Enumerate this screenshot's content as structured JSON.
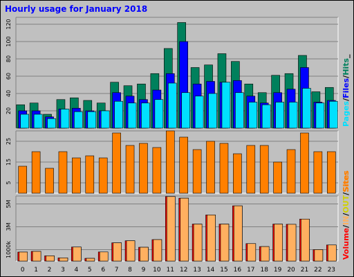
{
  "chart_data": {
    "title": "Hourly usage for January 2018",
    "type": "bar",
    "categories": [
      "0",
      "1",
      "2",
      "3",
      "4",
      "5",
      "6",
      "7",
      "8",
      "9",
      "10",
      "11",
      "12",
      "13",
      "14",
      "15",
      "16",
      "17",
      "18",
      "19",
      "20",
      "21",
      "22",
      "23"
    ],
    "colors": {
      "pages": "#00e0ff",
      "files": "#0000ff",
      "hits": "#00805c",
      "sites": "#ff8000",
      "in": "#ffb060",
      "out": "#d0d000",
      "volume": "#ff0000",
      "title": "#0000ff",
      "background": "#c0c0c0",
      "plot": "#c0c0c0",
      "grid": "#808080"
    },
    "panels": [
      {
        "id": "hits-files-pages",
        "ylim": [
          0,
          128
        ],
        "yticks": [
          "20",
          "40",
          "60",
          "80",
          "100",
          "120"
        ],
        "tick_values": [
          20,
          40,
          60,
          80,
          100,
          120
        ],
        "legend": [
          "Pages",
          "/",
          "Files",
          "/",
          "Hits",
          "_"
        ],
        "series": [
          {
            "name": "Hits",
            "color": "#00805c",
            "values": [
              27,
              29,
              16,
              33,
              35,
              32,
              29,
              53,
              49,
              51,
              63,
              92,
              122,
              70,
              73,
              86,
              77,
              51,
              41,
              61,
              63,
              84,
              42,
              47
            ]
          },
          {
            "name": "Files",
            "color": "#0000ff",
            "values": [
              20,
              20,
              13,
              22,
              23,
              20,
              20,
              41,
              37,
              33,
              44,
              63,
              100,
              51,
              54,
              53,
              55,
              37,
              29,
              41,
              45,
              70,
              30,
              32
            ]
          },
          {
            "name": "Pages",
            "color": "#00e0ff",
            "values": [
              16,
              16,
              11,
              22,
              19,
              19,
              20,
              31,
              29,
              29,
              33,
              52,
              41,
              37,
              40,
              53,
              41,
              30,
              27,
              30,
              30,
              46,
              29,
              31
            ]
          }
        ]
      },
      {
        "id": "sites",
        "ylim": [
          0,
          30
        ],
        "yticks": [
          "5",
          "15",
          "25"
        ],
        "tick_values": [
          5,
          15,
          25
        ],
        "legend": [
          "Sites"
        ],
        "series": [
          {
            "name": "Sites",
            "color": "#ff8000",
            "values": [
              13,
              20,
              12,
              20,
              17,
              18,
              17,
              29,
              23,
              24,
              22,
              30,
              27,
              21,
              25,
              24,
              19,
              23,
              23,
              15,
              21,
              29,
              20,
              20
            ]
          }
        ]
      },
      {
        "id": "volume",
        "ylim": [
          0,
          5700
        ],
        "yticks": [
          "1000k",
          "3M",
          "5M"
        ],
        "tick_values": [
          1000,
          3000,
          5000
        ],
        "legend": [
          "Volume",
          "/",
          "IN",
          "/",
          "OUT",
          "/",
          "Sites"
        ],
        "series": [
          {
            "name": "Volume",
            "color": "#ff0000",
            "values": [
              790,
              850,
              460,
              280,
              1230,
              240,
              800,
              1600,
              1780,
              1210,
              1880,
              5650,
              5510,
              3240,
              4040,
              3240,
              4840,
              1530,
              1270,
              3240,
              3220,
              3680,
              1000,
              1410
            ]
          },
          {
            "name": "IN",
            "color": "#ffb060",
            "values": [
              790,
              850,
              460,
              280,
              1230,
              240,
              800,
              1600,
              1780,
              1210,
              1880,
              5650,
              5510,
              3240,
              4040,
              3240,
              4840,
              1530,
              1270,
              3240,
              3220,
              3680,
              1000,
              1410
            ]
          }
        ]
      }
    ]
  }
}
